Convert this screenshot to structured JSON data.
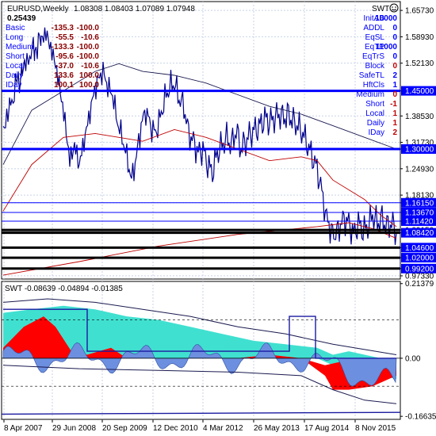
{
  "header": {
    "symbol_timeframe": "EURUSD,Weekly",
    "ohlc": "1.08308 1.08403 1.07089 1.07948",
    "indicator_value": "0.25439"
  },
  "stats_left": {
    "rows": [
      {
        "label": "Basic",
        "v1": "-135.3",
        "v2": "-100.0"
      },
      {
        "label": "Long",
        "v1": "-55.5",
        "v2": "-10.6"
      },
      {
        "label": "Medium",
        "v1": "-133.3",
        "v2": "-100.0"
      },
      {
        "label": "Short",
        "v1": "-95.6",
        "v2": "-100.0"
      },
      {
        "label": "Local",
        "v1": "-37.0",
        "v2": "-10.6"
      },
      {
        "label": "Daily",
        "v1": "133.6",
        "v2": "100.0"
      },
      {
        "label": "IDay",
        "v1": "100.1",
        "v2": "100.0"
      }
    ]
  },
  "stats_right": {
    "title": "SWT",
    "smiley_icon": "smiley-icon",
    "rows": [
      {
        "label": "InitAB",
        "value": "10000",
        "color": "#0000ff"
      },
      {
        "label": "ADDL",
        "value": "0",
        "color": "#0000ff"
      },
      {
        "label": "EqSL",
        "value": "0",
        "color": "#0000ff"
      },
      {
        "label": "EqTP",
        "value": "11000",
        "color": "#0000ff"
      },
      {
        "label": "EqTrS",
        "value": "0",
        "color": "#0000ff"
      },
      {
        "label": "Block",
        "value": "0",
        "color": "#c00000"
      },
      {
        "label": "SafeTL",
        "value": "2",
        "color": "#0000ff"
      },
      {
        "label": "HftCls",
        "value": "1",
        "color": "#0000ff"
      },
      {
        "label": "Medium",
        "value": "0",
        "color": "#c00000"
      },
      {
        "label": "Short",
        "value": "-1",
        "color": "#c00000"
      },
      {
        "label": "Local",
        "value": "1",
        "color": "#c00000"
      },
      {
        "label": "Daily",
        "value": "1",
        "color": "#c00000"
      },
      {
        "label": "IDay",
        "value": "2",
        "color": "#c00000"
      }
    ]
  },
  "price_axis": {
    "ticks": [
      "1.65730",
      "1.58930",
      "1.52130",
      "1.45000",
      "1.38530",
      "1.31730",
      "1.30000",
      "1.24930",
      "1.18130",
      "1.16150",
      "1.13670",
      "1.11420",
      "1.09150",
      "1.08420",
      "1.04600",
      "1.02000",
      "0.99200",
      "0.97330"
    ],
    "highlighted": [
      "1.45000",
      "1.30000",
      "1.16150",
      "1.13670",
      "1.11420",
      "1.08420",
      "1.04600",
      "1.02000",
      "0.99200"
    ]
  },
  "levels": [
    {
      "price": "1.45000",
      "style": "thick-blue"
    },
    {
      "price": "1.30000",
      "style": "thick-blue"
    },
    {
      "price": "1.16150",
      "style": "thin-blue"
    },
    {
      "price": "1.13670",
      "style": "thin-blue"
    },
    {
      "price": "1.11420",
      "style": "thin-blue"
    },
    {
      "price": "1.09150",
      "style": "thick-black"
    },
    {
      "price": "1.08420",
      "style": "thick-black"
    },
    {
      "price": "1.04600",
      "style": "thick-black"
    },
    {
      "price": "1.02000",
      "style": "thick-black"
    },
    {
      "price": "0.99200",
      "style": "thick-black"
    }
  ],
  "sub_window": {
    "label": "SWT -0.08639 -0.04894 -0.01385",
    "ticks": [
      "0.21379",
      "0.00",
      "-0.16635"
    ]
  },
  "time_axis": {
    "labels": [
      "8 Apr 2007",
      "29 Jun 2008",
      "20 Sep 2009",
      "12 Dec 2010",
      "4 Mar 2012",
      "26 May 2013",
      "17 Aug 2014",
      "8 Nov 2015"
    ]
  },
  "colors": {
    "price_line": "#00008b",
    "level_blue": "#0000ff",
    "level_black": "#000000",
    "ma_dark": "#1a1a50",
    "ma_red": "#c00000",
    "hist_red": "#ff0000",
    "hist_blue": "#6d8fe0",
    "hist_cyan": "#40e0d0",
    "text_blue": "#0000ff",
    "text_red": "#8b0000"
  }
}
